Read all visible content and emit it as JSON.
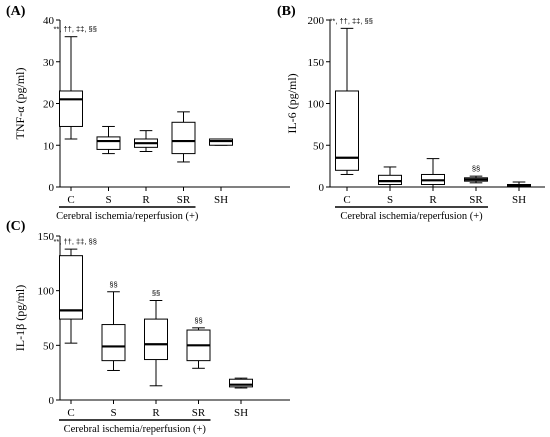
{
  "chart_data": [
    {
      "type": "box",
      "panel_label": "(A)",
      "ylabel": "TNF-α (pg/ml)",
      "ylim": [
        0,
        40
      ],
      "yticks": [
        0,
        10,
        20,
        30,
        40
      ],
      "categories": [
        "C",
        "S",
        "R",
        "SR",
        "SH"
      ],
      "group_label": "Cerebral ischemia/reperfusion (+)",
      "group_span": [
        0,
        3
      ],
      "boxes": [
        {
          "min": 11.5,
          "q1": 14.5,
          "median": 21.0,
          "q3": 23.0,
          "max": 36.0
        },
        {
          "min": 8.0,
          "q1": 9.0,
          "median": 11.0,
          "q3": 12.0,
          "max": 14.5
        },
        {
          "min": 8.5,
          "q1": 9.5,
          "median": 10.5,
          "q3": 11.5,
          "max": 13.5
        },
        {
          "min": 6.0,
          "q1": 8.0,
          "median": 11.0,
          "q3": 15.5,
          "max": 18.0
        },
        {
          "min": 10.0,
          "q1": 10.0,
          "median": 11.0,
          "q3": 11.5,
          "max": 11.5
        }
      ],
      "annotations": [
        "**, ††, ‡‡, §§",
        "",
        "",
        "",
        ""
      ]
    },
    {
      "type": "box",
      "panel_label": "(B)",
      "ylabel": "IL-6 (pg/ml)",
      "ylim": [
        0,
        200
      ],
      "yticks": [
        0,
        50,
        100,
        150,
        200
      ],
      "categories": [
        "C",
        "S",
        "R",
        "SR",
        "SH"
      ],
      "group_label": "Cerebral ischemia/reperfusion (+)",
      "group_span": [
        0,
        3
      ],
      "boxes": [
        {
          "min": 15,
          "q1": 20,
          "median": 35,
          "q3": 115,
          "max": 190
        },
        {
          "min": 0,
          "q1": 3,
          "median": 7,
          "q3": 14,
          "max": 24
        },
        {
          "min": 0,
          "q1": 3,
          "median": 8,
          "q3": 15,
          "max": 34
        },
        {
          "min": 5,
          "q1": 7,
          "median": 9,
          "q3": 11,
          "max": 13
        },
        {
          "min": 0,
          "q1": 1,
          "median": 2,
          "q3": 3,
          "max": 6
        }
      ],
      "annotations": [
        "**, ††, ‡‡, §§",
        "",
        "",
        "§§",
        ""
      ]
    },
    {
      "type": "box",
      "panel_label": "(C)",
      "ylabel": "IL-1β (pg/ml)",
      "ylim": [
        0,
        150
      ],
      "yticks": [
        0,
        50,
        100,
        150
      ],
      "categories": [
        "C",
        "S",
        "R",
        "SR",
        "SH"
      ],
      "group_label": "Cerebral ischemia/reperfusion (+)",
      "group_span": [
        0,
        3
      ],
      "boxes": [
        {
          "min": 52,
          "q1": 74,
          "median": 82,
          "q3": 132,
          "max": 138
        },
        {
          "min": 27,
          "q1": 36,
          "median": 49,
          "q3": 69,
          "max": 99
        },
        {
          "min": 13,
          "q1": 37,
          "median": 51,
          "q3": 74,
          "max": 91
        },
        {
          "min": 29,
          "q1": 36,
          "median": 50,
          "q3": 64,
          "max": 66
        },
        {
          "min": 11,
          "q1": 12,
          "median": 14,
          "q3": 19,
          "max": 20
        }
      ],
      "annotations": [
        "**, ††, ‡‡, §§",
        "§§",
        "§§",
        "§§",
        ""
      ]
    }
  ]
}
